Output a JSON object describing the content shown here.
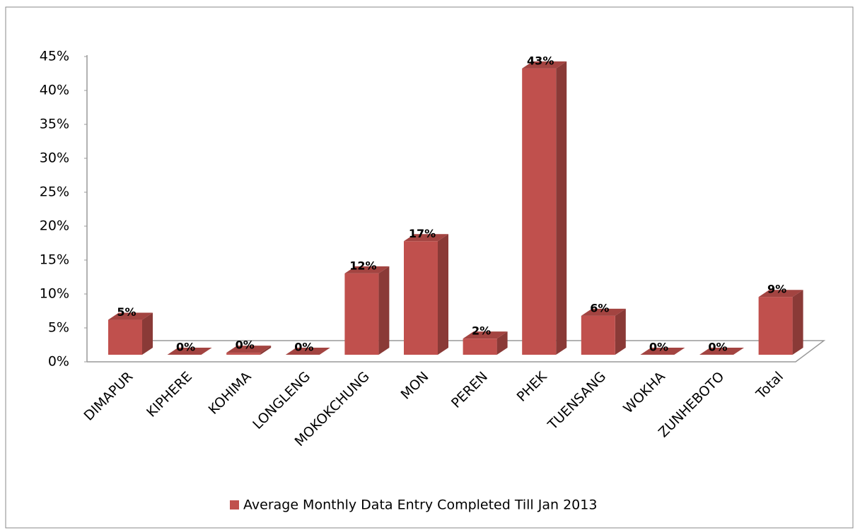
{
  "chart_data": {
    "type": "bar3d",
    "categories": [
      "DIMAPUR",
      "KIPHERE",
      "KOHIMA",
      "LONGLENG",
      "MOKOKCHUNG",
      "MON",
      "PEREN",
      "PHEK",
      "TUENSANG",
      "WOKHA",
      "ZUNHEBOTO",
      "Total"
    ],
    "series": [
      {
        "name": "Average Monthly Data Entry Completed Till Jan 2013",
        "color": "#c0504d",
        "values": [
          5.2,
          0,
          0.3,
          0,
          12.1,
          16.9,
          2.4,
          42.6,
          5.8,
          0,
          0,
          8.6
        ],
        "value_labels": [
          "5%",
          "0%",
          "0%",
          "0%",
          "12%",
          "17%",
          "2%",
          "43%",
          "6%",
          "0%",
          "0%",
          "9%"
        ]
      }
    ],
    "ylim": [
      0,
      45
    ],
    "yticks": [
      {
        "value": 0,
        "label": "0%"
      },
      {
        "value": 5,
        "label": "5%"
      },
      {
        "value": 10,
        "label": "10%"
      },
      {
        "value": 15,
        "label": "15%"
      },
      {
        "value": 20,
        "label": "20%"
      },
      {
        "value": 25,
        "label": "25%"
      },
      {
        "value": 30,
        "label": "30%"
      },
      {
        "value": 35,
        "label": "35%"
      },
      {
        "value": 40,
        "label": "40%"
      },
      {
        "value": 45,
        "label": "45%"
      }
    ],
    "legend": "bottom"
  }
}
